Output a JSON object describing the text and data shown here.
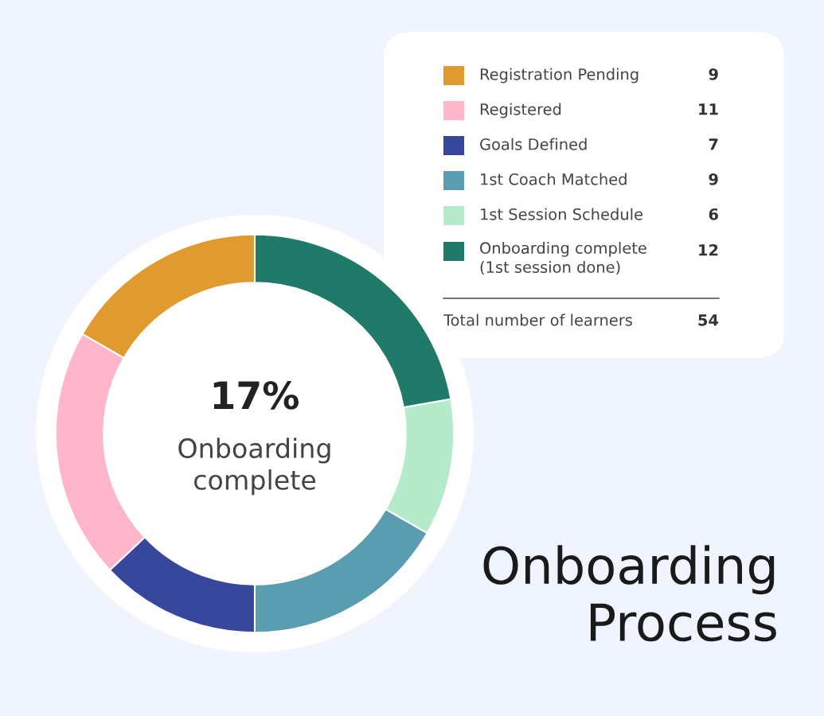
{
  "chart_data": {
    "type": "donut",
    "title": "Onboarding\nProcess",
    "categories": [
      "Registration Pending",
      "Registered",
      "Goals Defined",
      "1st Coach Matched",
      "1st Session Schedule",
      "Onboarding complete\n(1st session done)"
    ],
    "values": [
      9,
      11,
      7,
      9,
      6,
      12
    ],
    "colors": [
      "#e09a30",
      "#ffb6cb",
      "#37479b",
      "#5b9db0",
      "#b5ebcb",
      "#1f7a6a"
    ],
    "data_labels": true,
    "legend": "top right",
    "annotations": [
      "17%",
      "Onboarding\ncomplete",
      "Total number of learners",
      "54"
    ]
  }
}
